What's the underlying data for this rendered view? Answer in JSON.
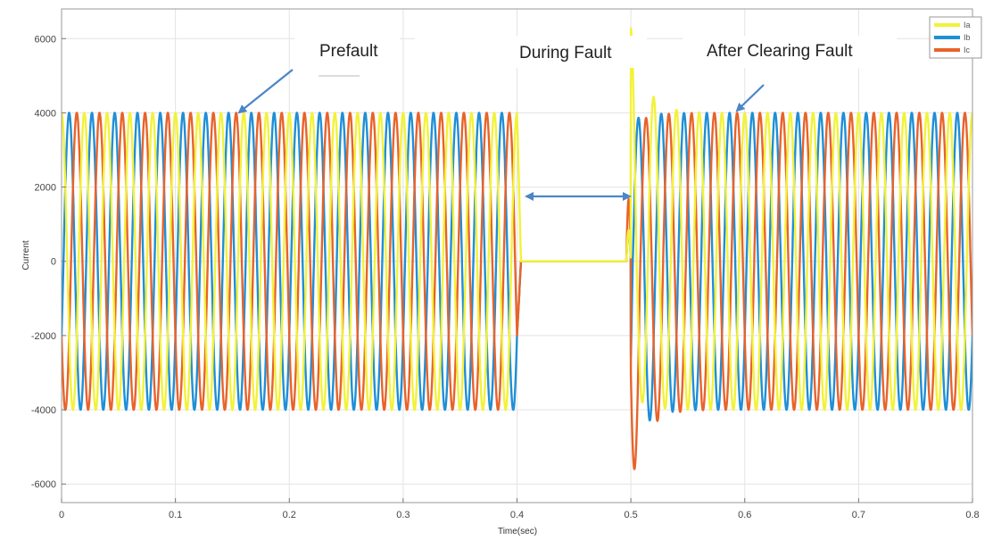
{
  "chart_data": {
    "type": "line",
    "title": "",
    "xlabel": "Time(sec)",
    "ylabel": "Current",
    "xlim": [
      0,
      0.8
    ],
    "ylim": [
      -6500,
      6800
    ],
    "xticks": [
      "0",
      "0.1",
      "0.2",
      "0.3",
      "0.4",
      "0.5",
      "0.6",
      "0.7",
      "0.8"
    ],
    "yticks": [
      "6000",
      "4000",
      "2000",
      "0",
      "-2000",
      "-4000",
      "-6000"
    ],
    "grid": true,
    "legend_position": "top-right",
    "fault_start": 0.4,
    "fault_clear": 0.5,
    "frequency_hz": 50,
    "amplitude": 4000,
    "series": [
      {
        "name": "Ia",
        "color": "#f2f23a",
        "phase_deg": 90
      },
      {
        "name": "Ib",
        "color": "#1f8fd6",
        "phase_deg": -30
      },
      {
        "name": "Ic",
        "color": "#e8632a",
        "phase_deg": 210
      }
    ],
    "transient_peaks": [
      {
        "series": "Ia",
        "time": 0.506,
        "value": 5200
      },
      {
        "series": "Ib",
        "time": 0.503,
        "value": -4600
      },
      {
        "series": "Ic",
        "time": 0.509,
        "value": -5100
      }
    ],
    "annotations": [
      {
        "text": "Prefault"
      },
      {
        "text": "During Fault"
      },
      {
        "text": "After Clearing Fault"
      }
    ]
  }
}
